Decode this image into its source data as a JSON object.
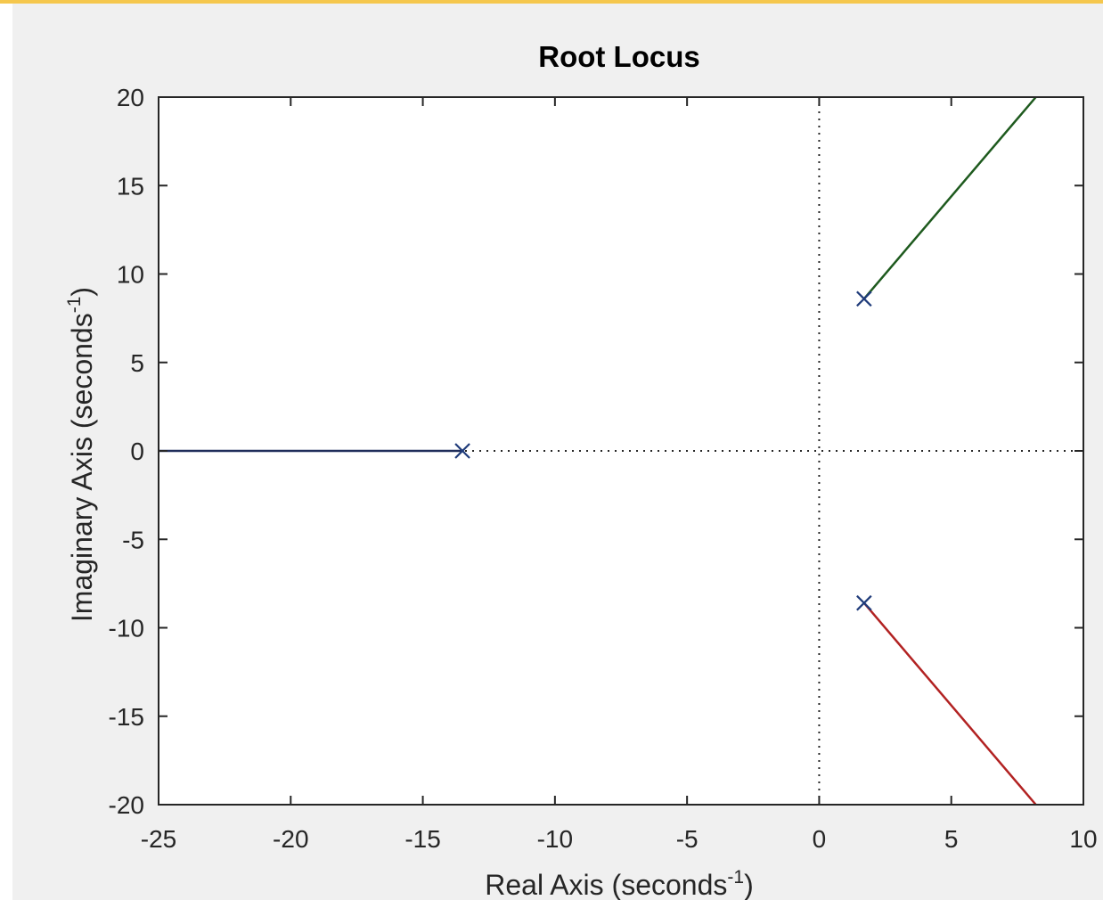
{
  "chart_data": {
    "type": "line",
    "title": "Root Locus",
    "xlabel": {
      "text": "Real Axis (seconds",
      "sup": "-1",
      "close": ")"
    },
    "ylabel": {
      "text": "Imaginary Axis (seconds",
      "sup": "-1",
      "close": ")"
    },
    "xlim": [
      -25,
      10
    ],
    "ylim": [
      -20,
      20
    ],
    "xticks": [
      -25,
      -20,
      -15,
      -10,
      -5,
      0,
      5,
      10
    ],
    "yticks": [
      -20,
      -15,
      -10,
      -5,
      0,
      5,
      10,
      15,
      20
    ],
    "grid": false,
    "reference_lines": {
      "x": 0,
      "y": 0,
      "style": "dotted"
    },
    "poles": [
      {
        "x": -13.5,
        "y": 0
      },
      {
        "x": 1.7,
        "y": 8.6
      },
      {
        "x": 1.7,
        "y": -8.6
      }
    ],
    "series": [
      {
        "color": "#1f2d5a",
        "x": [
          -13.5,
          -25
        ],
        "y": [
          0,
          0
        ]
      },
      {
        "color": "#1e5a1e",
        "x": [
          1.7,
          8.2
        ],
        "y": [
          8.6,
          20
        ]
      },
      {
        "color": "#b22222",
        "x": [
          1.7,
          8.2
        ],
        "y": [
          -8.6,
          -20
        ]
      }
    ],
    "colors": {
      "figure_background": "#f0f0f0",
      "plot_background": "#ffffff",
      "pole_marker": "#1f3b7a",
      "top_accent": "#f5c74d"
    }
  }
}
